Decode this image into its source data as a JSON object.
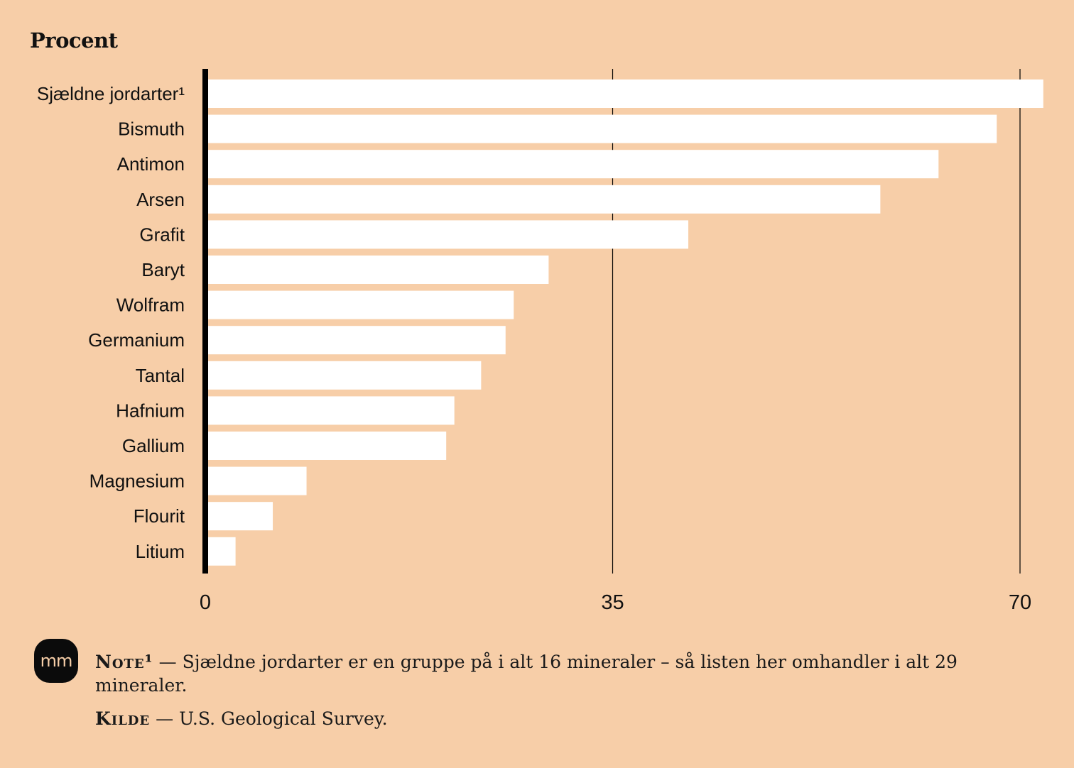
{
  "chart_data": {
    "type": "bar",
    "orientation": "horizontal",
    "ylabel": "Procent",
    "categories": [
      "Sjældne jordarter¹",
      "Bismuth",
      "Antimon",
      "Arsen",
      "Grafit",
      "Baryt",
      "Wolfram",
      "Germanium",
      "Tantal",
      "Hafnium",
      "Gallium",
      "Magnesium",
      "Flourit",
      "Litium"
    ],
    "values": [
      72,
      68,
      63,
      58,
      41.5,
      29.5,
      26.5,
      25.8,
      23.7,
      21.4,
      20.7,
      8.7,
      5.8,
      2.6
    ],
    "xlim": [
      0,
      72
    ],
    "xticks": [
      0,
      35,
      70
    ],
    "grid": true,
    "colors": {
      "background": "#F7CEA8",
      "bar": "#FFFFFF",
      "axis": "#000000",
      "gridline": "#000000"
    }
  },
  "logo_text": "mm",
  "footnotes": {
    "note_label": "Note¹",
    "note_separator": "—",
    "note_text": "Sjældne jordarter er en gruppe på i alt 16 mineraler – så listen her omhandler i alt 29 mineraler.",
    "source_label": "Kilde",
    "source_separator": "—",
    "source_text": "U.S. Geological Survey."
  }
}
